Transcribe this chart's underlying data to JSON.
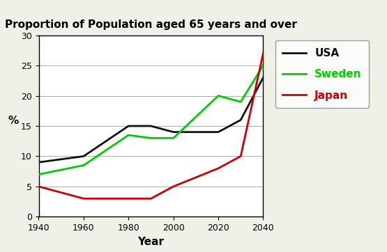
{
  "title": "Proportion of Population aged 65 years and over",
  "xlabel": "Year",
  "ylabel": "%",
  "background_color": "#f0f0e8",
  "plot_bg_color": "#ffffff",
  "years": [
    1940,
    1960,
    1980,
    1990,
    2000,
    2020,
    2030,
    2040
  ],
  "usa": [
    9,
    10,
    15,
    15,
    14,
    14,
    16,
    23
  ],
  "sweden": [
    7,
    8.5,
    13.5,
    13,
    13,
    20,
    19,
    25
  ],
  "japan": [
    5,
    3,
    3,
    3,
    5,
    8,
    10,
    27
  ],
  "usa_color": "#111111",
  "sweden_color": "#00cc00",
  "japan_color": "#cc0000",
  "ylim": [
    0,
    30
  ],
  "xlim": [
    1940,
    2040
  ],
  "xticks": [
    1940,
    1960,
    1980,
    2000,
    2020,
    2040
  ],
  "yticks": [
    0,
    5,
    10,
    15,
    20,
    25,
    30
  ],
  "title_fontsize": 11,
  "axis_label_fontsize": 11,
  "tick_fontsize": 9,
  "legend_entries": [
    "USA",
    "Sweden",
    "Japan"
  ],
  "legend_colors": [
    "#111111",
    "#00cc00",
    "#cc0000"
  ],
  "line_width": 2.0
}
